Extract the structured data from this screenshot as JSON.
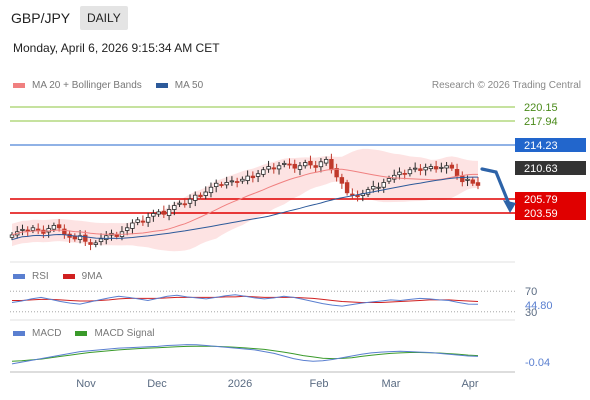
{
  "header": {
    "symbol": "GBP/JPY",
    "timeframe": "DAILY"
  },
  "datetime": "Monday, April 6, 2026 9:15:34 AM CET",
  "legend": {
    "ma20_label": "MA 20 + Bollinger Bands",
    "ma50_label": "MA 50",
    "credit": "Research © 2026 Trading Central",
    "rsi_label": "RSI",
    "rsi_ma_label": "9MA",
    "macd_label": "MACD",
    "macd_signal_label": "MACD Signal"
  },
  "colors": {
    "ma20": "#f08080",
    "ma50": "#2d5a9a",
    "band": "#fde0e0",
    "candle_up": "#2a2a2a",
    "candle_down": "#c0392b",
    "resistance_green": "#8cc63f",
    "pivot_blue": "#2266cc",
    "support_red": "#e00000",
    "current_price_bg": "#333333",
    "arrow": "#2d63a8",
    "rsi": "#5a7fd0",
    "rsi_ma": "#d02020",
    "macd": "#5a7fd0",
    "macd_signal": "#3a9a2a"
  },
  "price_levels": [
    {
      "value": "220.15",
      "kind": "resistance"
    },
    {
      "value": "217.94",
      "kind": "resistance"
    },
    {
      "value": "214.23",
      "kind": "pivot"
    },
    {
      "value": "210.63",
      "kind": "current"
    },
    {
      "value": "205.79",
      "kind": "support"
    },
    {
      "value": "203.59",
      "kind": "support"
    }
  ],
  "rsi": {
    "levels": [
      "70",
      "30"
    ],
    "value": "44.80"
  },
  "macd": {
    "value": "-0.04"
  },
  "x_axis": [
    "Nov",
    "Dec",
    "2026",
    "Feb",
    "Mar",
    "Apr"
  ],
  "chart_data": {
    "type": "candlestick",
    "price_range": [
      201.5,
      222.0
    ],
    "closes": [
      204.4,
      204.8,
      205.1,
      204.9,
      205.3,
      205.0,
      204.6,
      205.2,
      205.6,
      205.3,
      204.5,
      204.1,
      203.9,
      204.3,
      203.6,
      203.2,
      203.4,
      203.9,
      204.3,
      204.6,
      204.2,
      204.8,
      205.3,
      205.9,
      206.3,
      206.0,
      206.6,
      207.1,
      207.3,
      207.0,
      207.6,
      208.1,
      208.4,
      208.3,
      208.9,
      209.4,
      209.2,
      209.8,
      210.4,
      210.9,
      210.7,
      211.0,
      211.2,
      211.1,
      211.4,
      211.8,
      211.6,
      212.1,
      212.6,
      213.0,
      212.7,
      213.1,
      213.4,
      213.2,
      212.8,
      213.1,
      213.5,
      213.2,
      212.9,
      213.6,
      213.9,
      212.6,
      211.7,
      210.9,
      209.7,
      209.4,
      209.2,
      209.6,
      210.1,
      210.5,
      210.4,
      211.0,
      211.5,
      211.9,
      212.3,
      212.1,
      212.6,
      212.8,
      212.5,
      212.9,
      213.0,
      212.7,
      212.9,
      213.1,
      212.8,
      211.8,
      211.1,
      211.4,
      210.9,
      210.63
    ],
    "series": [
      {
        "name": "MA 20 + Bollinger Bands"
      },
      {
        "name": "MA 50"
      }
    ],
    "rsi_series": [
      48,
      51,
      55,
      58,
      54,
      50,
      47,
      45,
      49,
      53,
      57,
      60,
      58,
      55,
      52,
      56,
      60,
      62,
      59,
      57,
      55,
      58,
      61,
      63,
      60,
      57,
      55,
      57,
      60,
      58,
      54,
      50,
      46,
      43,
      41,
      44,
      47,
      49,
      51,
      53,
      52,
      54,
      56,
      55,
      53,
      52,
      48,
      45,
      44.8
    ],
    "rsi_ma_series": [
      52,
      52,
      53,
      54,
      54,
      53,
      52,
      51,
      51,
      52,
      53,
      55,
      56,
      56,
      56,
      56,
      57,
      58,
      58,
      58,
      58,
      58,
      59,
      59,
      60,
      59,
      58,
      58,
      58,
      58,
      57,
      56,
      54,
      52,
      50,
      49,
      48,
      48,
      48,
      49,
      50,
      51,
      52,
      53,
      53,
      53,
      52,
      51,
      50
    ],
    "macd_series": [
      -0.9,
      -0.7,
      -0.5,
      -0.3,
      -0.1,
      0.1,
      0.3,
      0.5,
      0.6,
      0.7,
      0.8,
      0.9,
      0.95,
      1.0,
      1.05,
      1.1,
      1.2,
      1.25,
      1.3,
      1.28,
      1.2,
      1.1,
      1.0,
      0.9,
      0.8,
      0.7,
      0.5,
      0.3,
      0.0,
      -0.3,
      -0.5,
      -0.6,
      -0.55,
      -0.4,
      -0.2,
      0.0,
      0.2,
      0.35,
      0.45,
      0.5,
      0.55,
      0.5,
      0.45,
      0.4,
      0.3,
      0.2,
      0.1,
      0.0,
      -0.04
    ],
    "macd_signal_series": [
      -0.6,
      -0.55,
      -0.45,
      -0.35,
      -0.2,
      -0.05,
      0.1,
      0.25,
      0.4,
      0.5,
      0.6,
      0.7,
      0.78,
      0.85,
      0.9,
      0.95,
      1.0,
      1.05,
      1.1,
      1.12,
      1.12,
      1.1,
      1.05,
      1.0,
      0.92,
      0.85,
      0.75,
      0.6,
      0.45,
      0.25,
      0.05,
      -0.1,
      -0.25,
      -0.3,
      -0.28,
      -0.2,
      -0.05,
      0.08,
      0.2,
      0.3,
      0.36,
      0.4,
      0.4,
      0.38,
      0.34,
      0.28,
      0.2,
      0.1,
      0.05
    ],
    "rsi_range": [
      20,
      80
    ],
    "macd_range": [
      -1.6,
      1.6
    ]
  }
}
